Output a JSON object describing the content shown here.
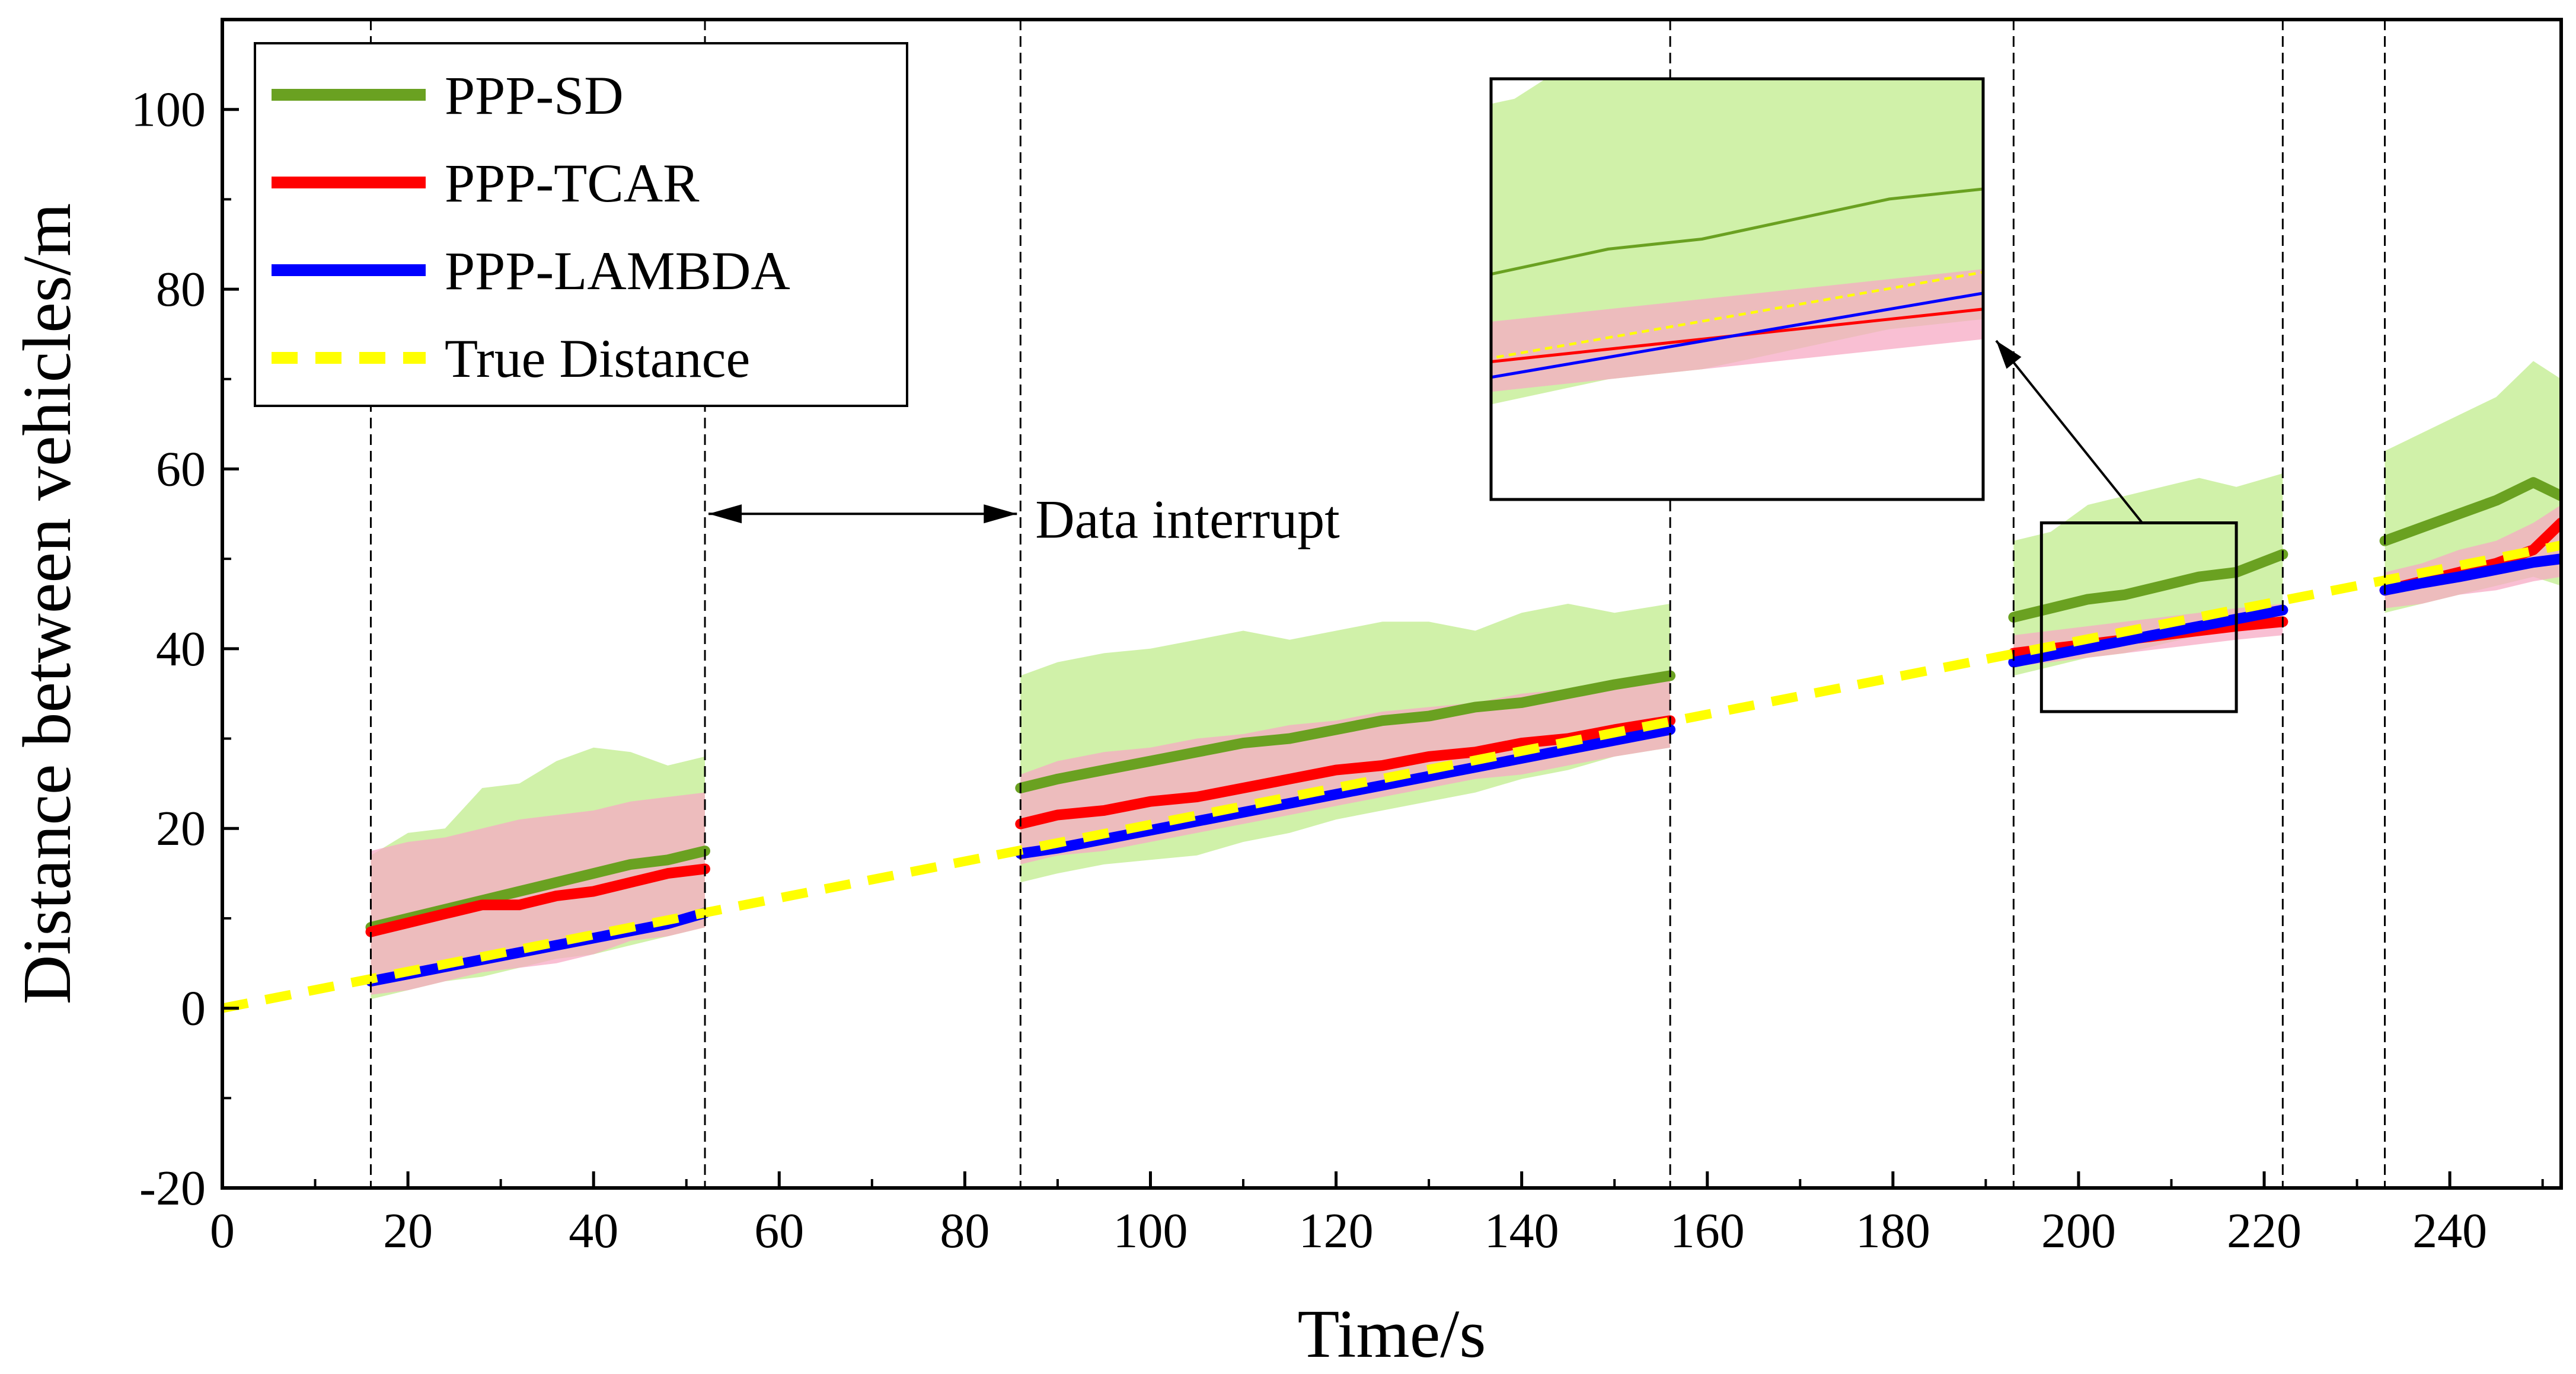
{
  "chart_data": {
    "type": "line",
    "title": "",
    "xlabel": "Time/s",
    "ylabel": "Distance between vehicles/m",
    "xlim": [
      0,
      252
    ],
    "ylim": [
      -20,
      110
    ],
    "xticks": [
      0,
      20,
      40,
      60,
      80,
      100,
      120,
      140,
      160,
      180,
      200,
      220,
      240
    ],
    "yticks": [
      -20,
      0,
      20,
      40,
      60,
      80,
      100
    ],
    "grid": false,
    "legend": {
      "placement": "top-left",
      "entries": [
        {
          "name": "PPP-SD",
          "color": "#6aa121",
          "style": "solid"
        },
        {
          "name": "PPP-TCAR",
          "color": "#ff0000",
          "style": "solid"
        },
        {
          "name": "PPP-LAMBDA",
          "color": "#0000ff",
          "style": "solid"
        },
        {
          "name": "True Distance",
          "color": "#ffff00",
          "style": "dashed"
        }
      ]
    },
    "vlines": [
      16,
      52,
      86,
      156,
      193,
      222,
      233
    ],
    "annotation": {
      "text": "Data interrupt",
      "arrow_from": 52,
      "arrow_to": 86,
      "y": 55
    },
    "zoom_box": {
      "x": [
        196,
        217
      ],
      "y": [
        33,
        54
      ]
    },
    "true_distance": {
      "x": [
        0,
        252
      ],
      "y": [
        0,
        51.5
      ]
    },
    "segments": [
      {
        "x": [
          16,
          20,
          24,
          28,
          32,
          36,
          40,
          44,
          48,
          52
        ],
        "series": [
          {
            "name": "PPP-SD",
            "y": [
              9,
              10,
              11,
              12,
              13,
              14,
              15,
              16,
              16.5,
              17.5
            ],
            "band_low": [
              1,
              2,
              3,
              3.5,
              4.5,
              5.5,
              6,
              7,
              8,
              9
            ],
            "band_high": [
              17,
              19.5,
              20,
              24.5,
              25,
              27.5,
              29,
              28.5,
              27,
              28
            ]
          },
          {
            "name": "PPP-TCAR",
            "y": [
              8.5,
              9.5,
              10.5,
              11.5,
              11.5,
              12.5,
              13,
              14,
              15,
              15.5
            ],
            "band_low": [
              1.5,
              2,
              3,
              4,
              4.5,
              5,
              6,
              7.5,
              8,
              9
            ],
            "band_high": [
              17.5,
              18.5,
              19,
              20,
              21,
              21.5,
              22,
              23,
              23.5,
              24
            ]
          },
          {
            "name": "PPP-LAMBDA",
            "y": [
              3,
              3.8,
              4.6,
              5.4,
              6.2,
              7,
              7.8,
              8.6,
              9.4,
              10.6
            ]
          }
        ]
      },
      {
        "x": [
          86,
          90,
          95,
          100,
          105,
          110,
          115,
          120,
          125,
          130,
          135,
          140,
          145,
          150,
          156
        ],
        "series": [
          {
            "name": "PPP-SD",
            "y": [
              24.5,
              25.5,
              26.5,
              27.5,
              28.5,
              29.5,
              30,
              31,
              32,
              32.5,
              33.5,
              34,
              35,
              36,
              37
            ],
            "band_low": [
              14,
              15,
              16,
              16.5,
              17,
              18.5,
              19.5,
              21,
              22,
              23,
              24,
              25.5,
              26.5,
              28,
              29
            ],
            "band_high": [
              37,
              38.5,
              39.5,
              40,
              41,
              42,
              41,
              42,
              43,
              43,
              42,
              44,
              45,
              44,
              45
            ]
          },
          {
            "name": "PPP-TCAR",
            "y": [
              20.5,
              21.5,
              22,
              23,
              23.5,
              24.5,
              25.5,
              26.5,
              27,
              28,
              28.5,
              29.5,
              30,
              31,
              32
            ],
            "band_low": [
              16,
              17,
              17.5,
              18.5,
              19.5,
              20.5,
              21.5,
              22.5,
              23.5,
              24.5,
              25.5,
              26,
              27,
              28,
              29
            ],
            "band_high": [
              26,
              27.5,
              28.5,
              29,
              30,
              30.5,
              31.5,
              32,
              33,
              33.5,
              34,
              35,
              35.5,
              36,
              36.5
            ]
          },
          {
            "name": "PPP-LAMBDA",
            "y": [
              17.2,
              17.8,
              18.8,
              19.8,
              20.8,
              21.8,
              22.8,
              23.8,
              24.8,
              25.8,
              26.8,
              27.8,
              28.8,
              29.8,
              31
            ]
          }
        ]
      },
      {
        "x": [
          193,
          197,
          201,
          205,
          209,
          213,
          217,
          222
        ],
        "series": [
          {
            "name": "PPP-SD",
            "y": [
              43.5,
              44.5,
              45.5,
              46,
              47,
              48,
              48.5,
              50.5
            ],
            "band_low": [
              37,
              38,
              39,
              39.5,
              40.5,
              41.5,
              42,
              43
            ],
            "band_high": [
              52,
              53,
              56,
              57,
              58,
              59,
              58,
              59.5
            ]
          },
          {
            "name": "PPP-TCAR",
            "y": [
              39.5,
              40,
              40.5,
              41,
              41.5,
              42,
              42.5,
              43
            ],
            "band_low": [
              38,
              38.5,
              39,
              39.5,
              40,
              40.5,
              41,
              41.5
            ],
            "band_high": [
              41.5,
              42,
              42.5,
              43,
              43.5,
              44,
              44.5,
              45
            ]
          },
          {
            "name": "PPP-LAMBDA",
            "y": [
              38.5,
              39.3,
              40.1,
              40.9,
              41.7,
              42.5,
              43.3,
              44.3
            ]
          }
        ]
      },
      {
        "x": [
          233,
          237,
          241,
          245,
          249,
          252
        ],
        "series": [
          {
            "name": "PPP-SD",
            "y": [
              52,
              53.5,
              55,
              56.5,
              58.5,
              57
            ],
            "band_low": [
              44,
              45,
              46,
              47,
              48,
              47
            ],
            "band_high": [
              62,
              64,
              66,
              68,
              72,
              70
            ]
          },
          {
            "name": "PPP-TCAR",
            "y": [
              46.5,
              47.5,
              48.5,
              49.5,
              51,
              54
            ],
            "band_low": [
              44.5,
              45,
              46,
              46.5,
              47.5,
              48
            ],
            "band_high": [
              48.5,
              49.5,
              51,
              52,
              54,
              56
            ]
          },
          {
            "name": "PPP-LAMBDA",
            "y": [
              46.5,
              47.3,
              48,
              48.8,
              49.6,
              50
            ]
          }
        ]
      }
    ]
  }
}
